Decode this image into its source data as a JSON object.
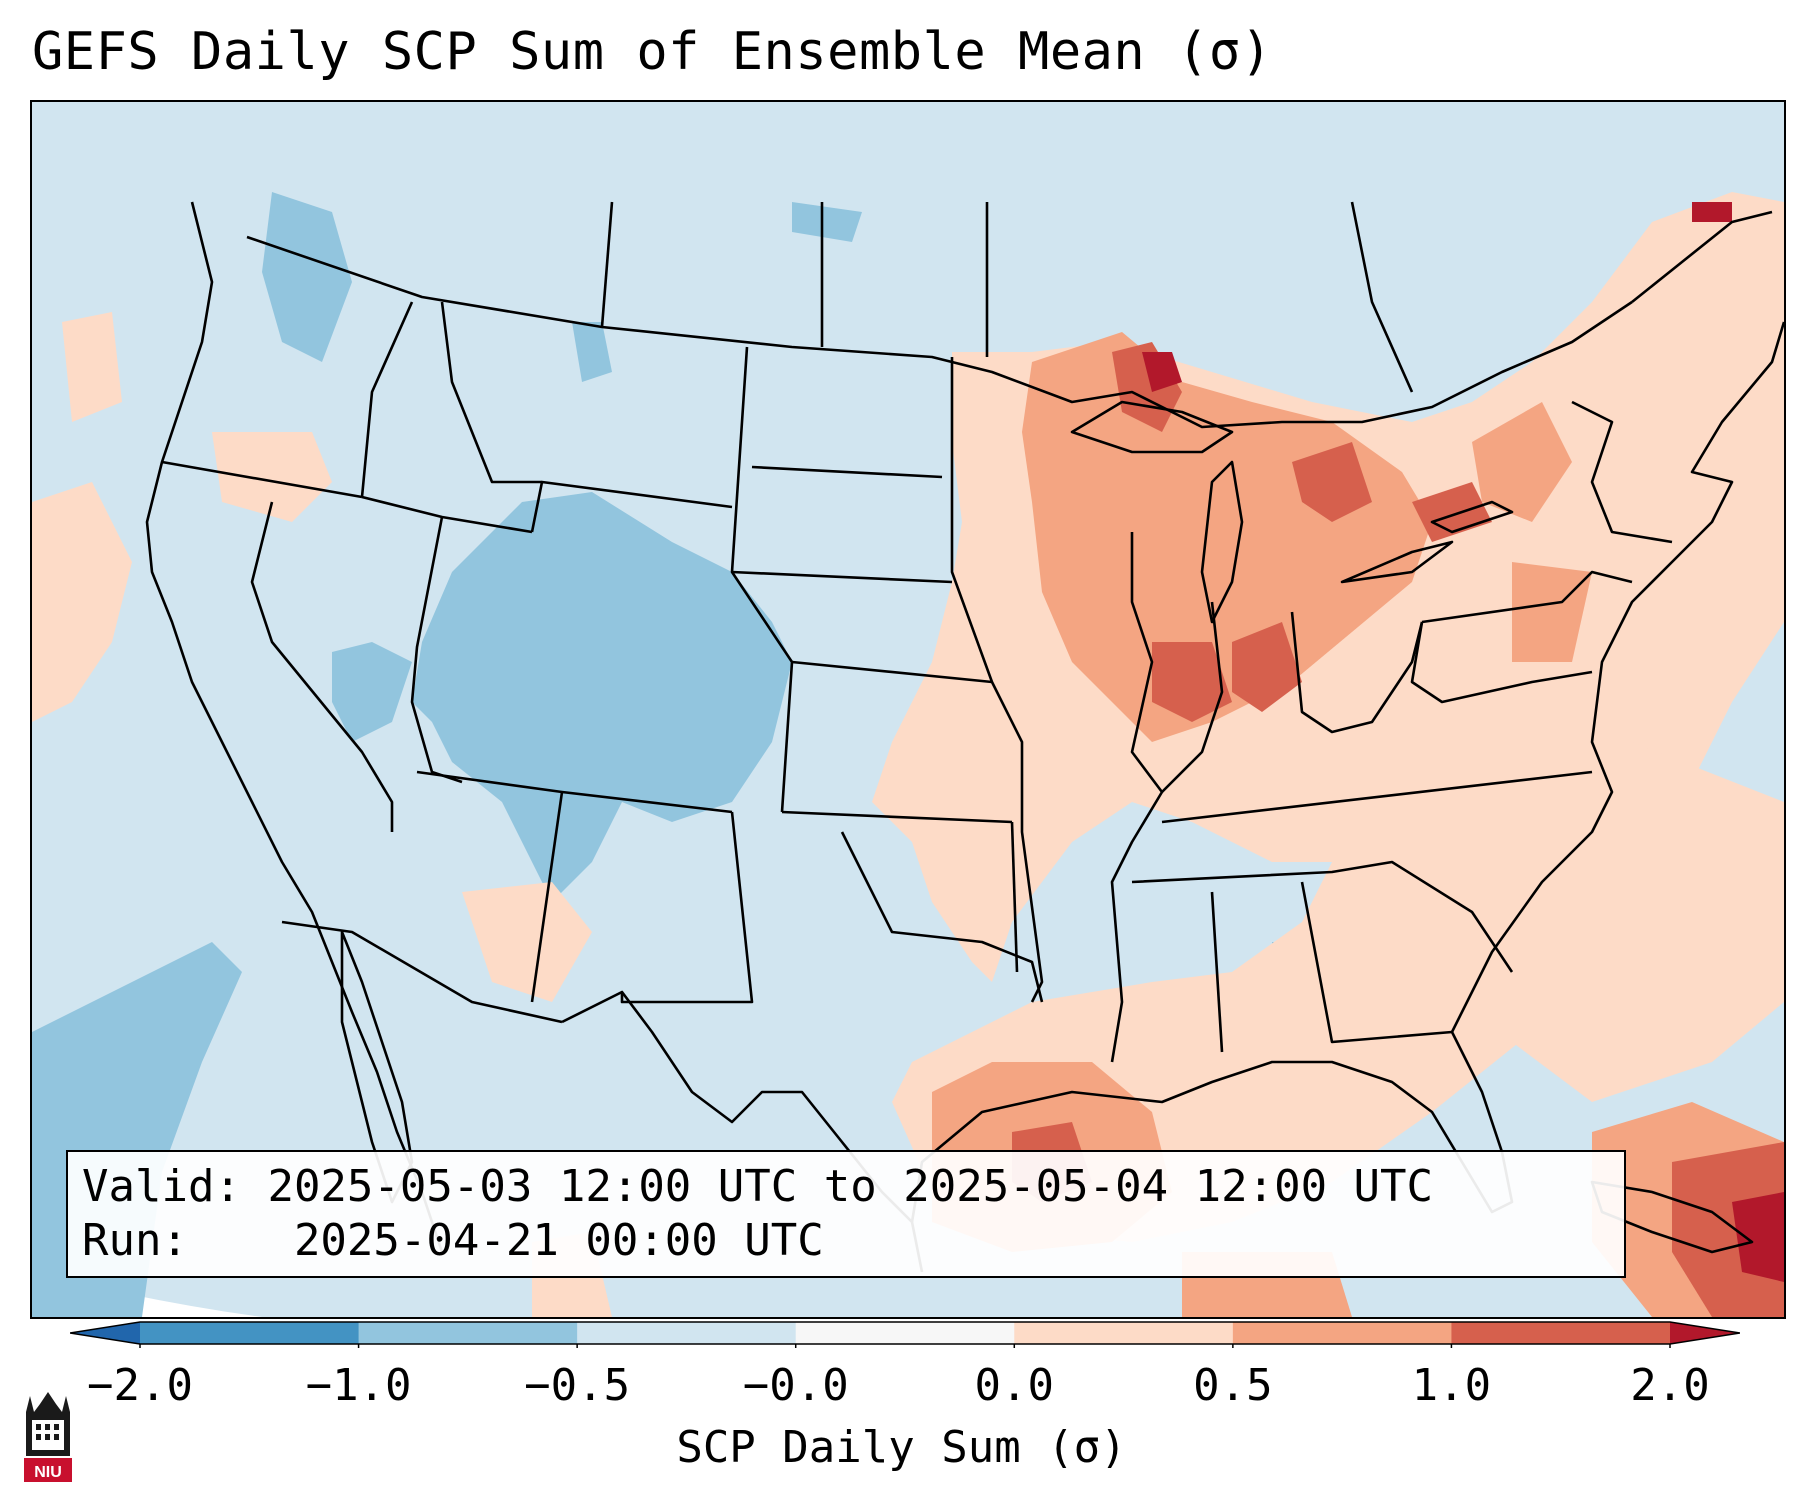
{
  "title": "GEFS Daily SCP Sum of Ensemble Mean (σ)",
  "info": {
    "valid_label": "Valid:",
    "valid_value": "2025-05-03 12:00 UTC to 2025-05-04 12:00 UTC",
    "run_label": "Run:",
    "run_value": "2025-04-21 00:00 UTC"
  },
  "colorbar": {
    "label": "SCP Daily Sum (σ)",
    "ticks": [
      "−2.0",
      "−1.0",
      "−0.5",
      "−0.0",
      "0.0",
      "0.5",
      "1.0",
      "2.0"
    ],
    "bins": [
      {
        "from": -2.0,
        "to": -1.0,
        "color": "#4393c3"
      },
      {
        "from": -1.0,
        "to": -0.5,
        "color": "#92c5de"
      },
      {
        "from": -0.5,
        "to": -0.0,
        "color": "#d1e5f0"
      },
      {
        "from": -0.0,
        "to": 0.0,
        "color": "#f7f7f7"
      },
      {
        "from": 0.0,
        "to": 0.5,
        "color": "#fddbc7"
      },
      {
        "from": 0.5,
        "to": 1.0,
        "color": "#f4a582"
      },
      {
        "from": 1.0,
        "to": 2.0,
        "color": "#d6604d"
      }
    ],
    "under_color": "#2166ac",
    "over_color": "#b2182b",
    "extend": "both"
  },
  "logo": {
    "text": "NIU",
    "icon": "niu-logo"
  }
}
